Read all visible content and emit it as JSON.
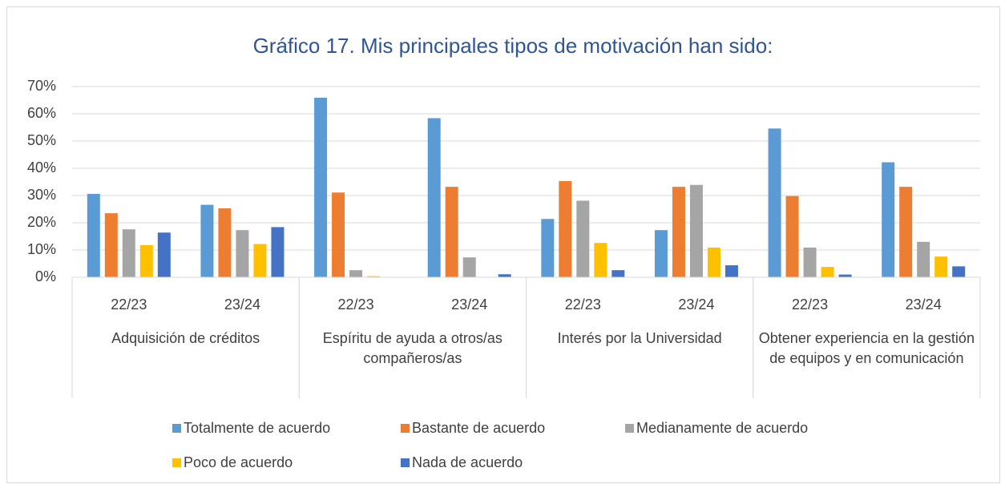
{
  "chart_data": {
    "type": "bar",
    "title": "Gráfico 17. Mis principales tipos de motivación han sido:",
    "groups": [
      {
        "label": "Adquisición de créditos",
        "categories": [
          "22/23",
          "23/24"
        ]
      },
      {
        "label": "Espíritu de ayuda a otros/as compañeros/as",
        "categories": [
          "22/23",
          "23/24"
        ]
      },
      {
        "label": "Interés por la Universidad",
        "categories": [
          "22/23",
          "23/24"
        ]
      },
      {
        "label": "Obtener experiencia en la gestión de equipos y en comunicación",
        "categories": [
          "22/23",
          "23/24"
        ]
      }
    ],
    "series": [
      {
        "name": "Totalmente de acuerdo",
        "color": "#5b9bd5",
        "values": [
          30.6,
          26.6,
          65.9,
          58.4,
          21.4,
          17.3,
          54.6,
          42.2
        ]
      },
      {
        "name": "Bastante de acuerdo",
        "color": "#ed7d31",
        "values": [
          23.5,
          25.3,
          31.1,
          33.2,
          35.3,
          33.2,
          29.8,
          33.2
        ]
      },
      {
        "name": "Medianamente de acuerdo",
        "color": "#a5a5a5",
        "values": [
          17.6,
          17.3,
          2.6,
          7.3,
          28.1,
          33.9,
          10.9,
          13.0
        ]
      },
      {
        "name": "Poco de acuerdo",
        "color": "#ffc000",
        "values": [
          11.8,
          12.2,
          0.4,
          0,
          12.6,
          10.9,
          3.8,
          7.6
        ]
      },
      {
        "name": "Nada de acuerdo",
        "color": "#4472c4",
        "values": [
          16.4,
          18.4,
          0,
          1.1,
          2.6,
          4.4,
          1.0,
          4.0
        ]
      }
    ],
    "ylim": [
      0,
      70
    ],
    "yticks": [
      {
        "value": 0,
        "label": "0%"
      },
      {
        "value": 10,
        "label": "10%"
      },
      {
        "value": 20,
        "label": "20%"
      },
      {
        "value": 30,
        "label": "30%"
      },
      {
        "value": 40,
        "label": "40%"
      },
      {
        "value": 50,
        "label": "50%"
      },
      {
        "value": 60,
        "label": "60%"
      },
      {
        "value": 70,
        "label": "70%"
      }
    ],
    "grid": true
  }
}
